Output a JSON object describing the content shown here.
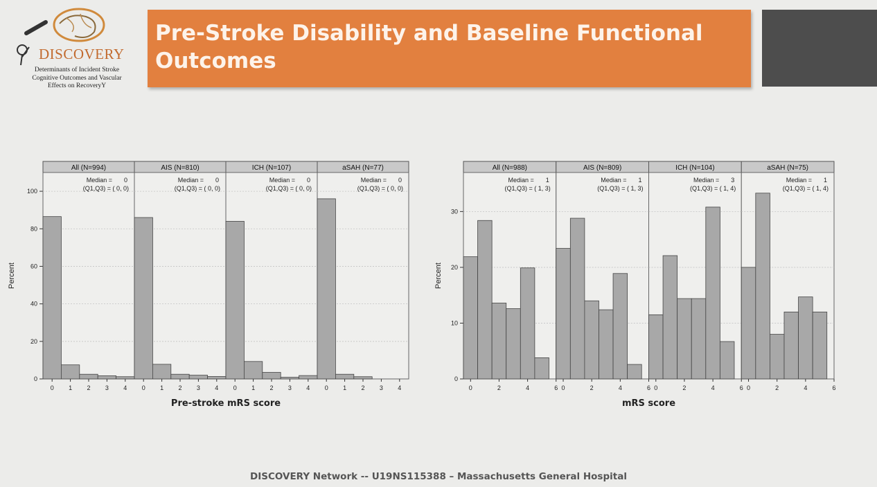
{
  "logo": {
    "name": "DISCOVERY",
    "subtitle_lines": [
      "Determinants of Incident Stroke",
      "Cognitive Outcomes and Vascular",
      "Effects on RecoveryY"
    ]
  },
  "title": "Pre-Stroke Disability and Baseline Functional Outcomes",
  "footer": "DISCOVERY Network -- U19NS115388 – Massachusetts General Hospital",
  "colors": {
    "title_bar": "#e2803f",
    "bar_fill": "#a8a8a8",
    "panel_header": "#c9c9c9"
  },
  "chart_data": [
    {
      "type": "bar",
      "xlabel": "Pre-stroke mRS score",
      "ylabel": "Percent",
      "ylim": [
        0,
        110
      ],
      "yticks": [
        0,
        20,
        40,
        60,
        80,
        100
      ],
      "xlim": [
        -0.5,
        4.5
      ],
      "xticks": [
        0,
        1,
        2,
        3,
        4
      ],
      "bin_width": 1,
      "panels": [
        {
          "label": "All (N=994)",
          "median_label": "Median =",
          "median": "0",
          "iqr_label": "(Q1,Q3) = ( 0,  0)",
          "x": [
            0,
            1,
            2,
            3,
            4
          ],
          "values": [
            86.5,
            7.5,
            2.5,
            1.7,
            1.2
          ]
        },
        {
          "label": "AIS (N=810)",
          "median_label": "Median =",
          "median": "0",
          "iqr_label": "(Q1,Q3) = ( 0,  0)",
          "x": [
            0,
            1,
            2,
            3,
            4
          ],
          "values": [
            86,
            7.8,
            2.5,
            2,
            1.3
          ]
        },
        {
          "label": "ICH (N=107)",
          "median_label": "Median =",
          "median": "0",
          "iqr_label": "(Q1,Q3) = ( 0,  0)",
          "x": [
            0,
            1,
            2,
            3,
            4
          ],
          "values": [
            84,
            9.3,
            3.5,
            0.9,
            1.8
          ]
        },
        {
          "label": "aSAH (N=77)",
          "median_label": "Median =",
          "median": "0",
          "iqr_label": "(Q1,Q3) = ( 0,  0)",
          "x": [
            0,
            1,
            2,
            3,
            4
          ],
          "values": [
            96,
            2.5,
            1.2,
            0,
            0
          ]
        }
      ]
    },
    {
      "type": "bar",
      "xlabel": "mRS score",
      "ylabel": "Percent",
      "ylim": [
        0,
        37
      ],
      "yticks": [
        0,
        10,
        20,
        30
      ],
      "xlim": [
        -0.5,
        6
      ],
      "xticks": [
        0,
        2,
        4,
        6
      ],
      "bin_width": 1,
      "panels": [
        {
          "label": "All (N=988)",
          "median_label": "Median =",
          "median": "1",
          "iqr_label": "(Q1,Q3) = ( 1,  3)",
          "x": [
            0,
            1,
            2,
            3,
            4,
            5
          ],
          "values": [
            21.9,
            28.4,
            13.6,
            12.6,
            19.9,
            3.8
          ]
        },
        {
          "label": "AIS (N=809)",
          "median_label": "Median =",
          "median": "1",
          "iqr_label": "(Q1,Q3) = ( 1,  3)",
          "x": [
            0,
            1,
            2,
            3,
            4,
            5
          ],
          "values": [
            23.4,
            28.8,
            14,
            12.4,
            18.9,
            2.6
          ]
        },
        {
          "label": "ICH (N=104)",
          "median_label": "Median =",
          "median": "3",
          "iqr_label": "(Q1,Q3) = ( 1,  4)",
          "x": [
            0,
            1,
            2,
            3,
            4,
            5
          ],
          "values": [
            11.5,
            22.1,
            14.4,
            14.4,
            30.8,
            6.7
          ]
        },
        {
          "label": "aSAH (N=75)",
          "median_label": "Median =",
          "median": "1",
          "iqr_label": "(Q1,Q3) = ( 1,  4)",
          "x": [
            0,
            1,
            2,
            3,
            4,
            5
          ],
          "values": [
            20,
            33.3,
            8,
            12,
            14.7,
            12
          ]
        }
      ]
    }
  ]
}
